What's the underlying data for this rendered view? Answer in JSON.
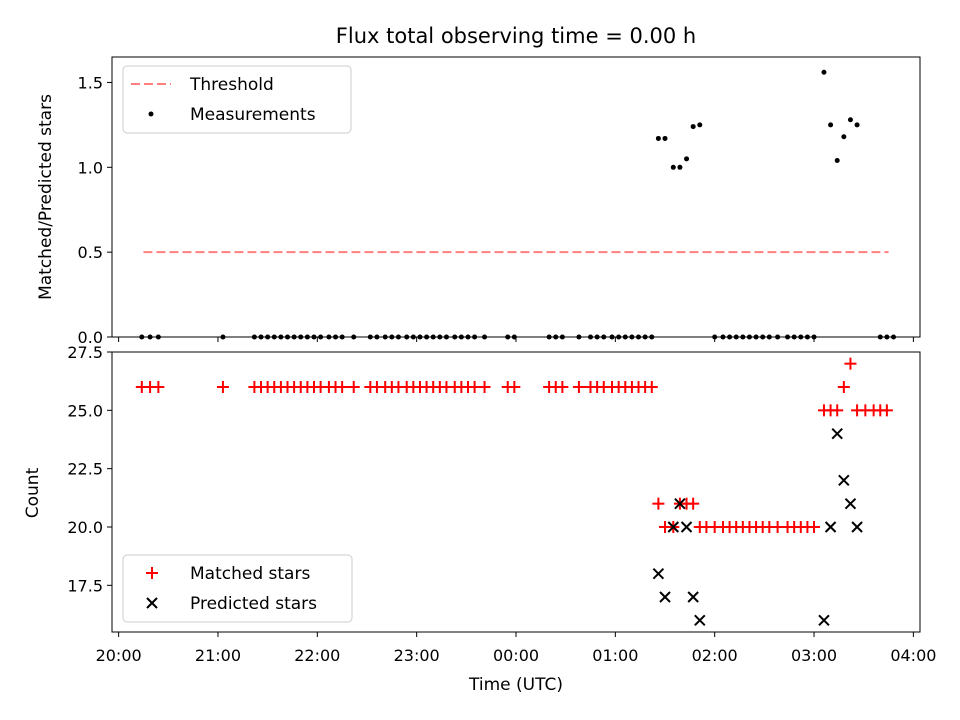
{
  "title": "Flux total observing time = 0.00 h",
  "chart_data": [
    {
      "type": "scatter",
      "panel": "top",
      "title": "Flux total observing time = 0.00 h",
      "xlabel": "",
      "ylabel": "Matched/Predicted stars",
      "xlim": [
        "19:56",
        "04:04"
      ],
      "ylim": [
        0,
        1.65
      ],
      "yticks": [
        "0.0",
        "0.5",
        "1.0",
        "1.5"
      ],
      "legend_position": "upper-left",
      "threshold": {
        "name": "Threshold",
        "value": 0.5,
        "x": [
          "20:15",
          "03:45"
        ],
        "color": "#ff7f7f",
        "style": "dashed"
      },
      "measurements": {
        "name": "Measurements",
        "color": "#000000",
        "zero_times": [
          "20:14",
          "20:19",
          "20:24",
          "21:03",
          "21:22",
          "21:26",
          "21:30",
          "21:34",
          "21:38",
          "21:42",
          "21:46",
          "21:50",
          "21:54",
          "21:58",
          "22:02",
          "22:07",
          "22:11",
          "22:15",
          "22:22",
          "22:32",
          "22:36",
          "22:41",
          "22:45",
          "22:49",
          "22:54",
          "22:58",
          "23:02",
          "23:06",
          "23:10",
          "23:14",
          "23:18",
          "23:23",
          "23:27",
          "23:31",
          "23:35",
          "23:41",
          "23:55",
          "23:59",
          "00:20",
          "00:24",
          "00:28",
          "00:38",
          "00:45",
          "00:49",
          "00:53",
          "00:58",
          "01:02",
          "01:06",
          "01:10",
          "01:14",
          "01:18",
          "01:22",
          "02:00",
          "02:05",
          "02:09",
          "02:13",
          "02:17",
          "02:21",
          "02:25",
          "02:29",
          "02:33",
          "02:38",
          "02:44",
          "02:48",
          "02:52",
          "02:56",
          "03:00",
          "03:40",
          "03:44",
          "03:48"
        ],
        "points": [
          {
            "x": "01:26",
            "y": 1.17
          },
          {
            "x": "01:30",
            "y": 1.17
          },
          {
            "x": "01:35",
            "y": 1.0
          },
          {
            "x": "01:39",
            "y": 1.0
          },
          {
            "x": "01:43",
            "y": 1.05
          },
          {
            "x": "01:47",
            "y": 1.24
          },
          {
            "x": "01:51",
            "y": 1.25
          },
          {
            "x": "03:06",
            "y": 1.56
          },
          {
            "x": "03:10",
            "y": 1.25
          },
          {
            "x": "03:14",
            "y": 1.04
          },
          {
            "x": "03:18",
            "y": 1.18
          },
          {
            "x": "03:22",
            "y": 1.28
          },
          {
            "x": "03:26",
            "y": 1.25
          }
        ]
      }
    },
    {
      "type": "scatter",
      "panel": "bottom",
      "xlabel": "Time (UTC)",
      "ylabel": "Count",
      "xlim": [
        "19:56",
        "04:04"
      ],
      "xticks": [
        "20:00",
        "21:00",
        "22:00",
        "23:00",
        "00:00",
        "01:00",
        "02:00",
        "03:00",
        "04:00"
      ],
      "ylim": [
        15.5,
        27.5
      ],
      "yticks": [
        "17.5",
        "20.0",
        "22.5",
        "25.0",
        "27.5"
      ],
      "legend_position": "lower-left",
      "series": [
        {
          "name": "Matched stars",
          "marker": "plus",
          "color": "#ff0000",
          "points": [
            {
              "x": "20:14",
              "y": 26
            },
            {
              "x": "20:19",
              "y": 26
            },
            {
              "x": "20:24",
              "y": 26
            },
            {
              "x": "21:03",
              "y": 26
            },
            {
              "x": "21:22",
              "y": 26
            },
            {
              "x": "21:26",
              "y": 26
            },
            {
              "x": "21:30",
              "y": 26
            },
            {
              "x": "21:34",
              "y": 26
            },
            {
              "x": "21:38",
              "y": 26
            },
            {
              "x": "21:42",
              "y": 26
            },
            {
              "x": "21:46",
              "y": 26
            },
            {
              "x": "21:50",
              "y": 26
            },
            {
              "x": "21:54",
              "y": 26
            },
            {
              "x": "21:58",
              "y": 26
            },
            {
              "x": "22:02",
              "y": 26
            },
            {
              "x": "22:07",
              "y": 26
            },
            {
              "x": "22:11",
              "y": 26
            },
            {
              "x": "22:15",
              "y": 26
            },
            {
              "x": "22:22",
              "y": 26
            },
            {
              "x": "22:32",
              "y": 26
            },
            {
              "x": "22:36",
              "y": 26
            },
            {
              "x": "22:41",
              "y": 26
            },
            {
              "x": "22:45",
              "y": 26
            },
            {
              "x": "22:49",
              "y": 26
            },
            {
              "x": "22:54",
              "y": 26
            },
            {
              "x": "22:58",
              "y": 26
            },
            {
              "x": "23:02",
              "y": 26
            },
            {
              "x": "23:06",
              "y": 26
            },
            {
              "x": "23:10",
              "y": 26
            },
            {
              "x": "23:14",
              "y": 26
            },
            {
              "x": "23:18",
              "y": 26
            },
            {
              "x": "23:23",
              "y": 26
            },
            {
              "x": "23:27",
              "y": 26
            },
            {
              "x": "23:31",
              "y": 26
            },
            {
              "x": "23:35",
              "y": 26
            },
            {
              "x": "23:41",
              "y": 26
            },
            {
              "x": "23:55",
              "y": 26
            },
            {
              "x": "23:59",
              "y": 26
            },
            {
              "x": "00:20",
              "y": 26
            },
            {
              "x": "00:24",
              "y": 26
            },
            {
              "x": "00:28",
              "y": 26
            },
            {
              "x": "00:38",
              "y": 26
            },
            {
              "x": "00:45",
              "y": 26
            },
            {
              "x": "00:49",
              "y": 26
            },
            {
              "x": "00:53",
              "y": 26
            },
            {
              "x": "00:58",
              "y": 26
            },
            {
              "x": "01:02",
              "y": 26
            },
            {
              "x": "01:06",
              "y": 26
            },
            {
              "x": "01:10",
              "y": 26
            },
            {
              "x": "01:14",
              "y": 26
            },
            {
              "x": "01:18",
              "y": 26
            },
            {
              "x": "01:22",
              "y": 26
            },
            {
              "x": "01:26",
              "y": 21
            },
            {
              "x": "01:30",
              "y": 20
            },
            {
              "x": "01:35",
              "y": 20
            },
            {
              "x": "01:39",
              "y": 21
            },
            {
              "x": "01:43",
              "y": 21
            },
            {
              "x": "01:47",
              "y": 21
            },
            {
              "x": "01:51",
              "y": 20
            },
            {
              "x": "01:55",
              "y": 20
            },
            {
              "x": "02:00",
              "y": 20
            },
            {
              "x": "02:05",
              "y": 20
            },
            {
              "x": "02:09",
              "y": 20
            },
            {
              "x": "02:13",
              "y": 20
            },
            {
              "x": "02:17",
              "y": 20
            },
            {
              "x": "02:21",
              "y": 20
            },
            {
              "x": "02:25",
              "y": 20
            },
            {
              "x": "02:29",
              "y": 20
            },
            {
              "x": "02:33",
              "y": 20
            },
            {
              "x": "02:38",
              "y": 20
            },
            {
              "x": "02:44",
              "y": 20
            },
            {
              "x": "02:48",
              "y": 20
            },
            {
              "x": "02:52",
              "y": 20
            },
            {
              "x": "02:56",
              "y": 20
            },
            {
              "x": "03:00",
              "y": 20
            },
            {
              "x": "03:06",
              "y": 25
            },
            {
              "x": "03:10",
              "y": 25
            },
            {
              "x": "03:14",
              "y": 25
            },
            {
              "x": "03:18",
              "y": 26
            },
            {
              "x": "03:22",
              "y": 27
            },
            {
              "x": "03:26",
              "y": 25
            },
            {
              "x": "03:31",
              "y": 25
            },
            {
              "x": "03:36",
              "y": 25
            },
            {
              "x": "03:40",
              "y": 25
            },
            {
              "x": "03:44",
              "y": 25
            }
          ]
        },
        {
          "name": "Predicted stars",
          "marker": "x",
          "color": "#000000",
          "points": [
            {
              "x": "01:26",
              "y": 18
            },
            {
              "x": "01:30",
              "y": 17
            },
            {
              "x": "01:35",
              "y": 20
            },
            {
              "x": "01:39",
              "y": 21
            },
            {
              "x": "01:43",
              "y": 20
            },
            {
              "x": "01:47",
              "y": 17
            },
            {
              "x": "01:51",
              "y": 16
            },
            {
              "x": "03:06",
              "y": 16
            },
            {
              "x": "03:10",
              "y": 20
            },
            {
              "x": "03:14",
              "y": 24
            },
            {
              "x": "03:18",
              "y": 22
            },
            {
              "x": "03:22",
              "y": 21
            },
            {
              "x": "03:26",
              "y": 20
            }
          ]
        }
      ]
    }
  ]
}
